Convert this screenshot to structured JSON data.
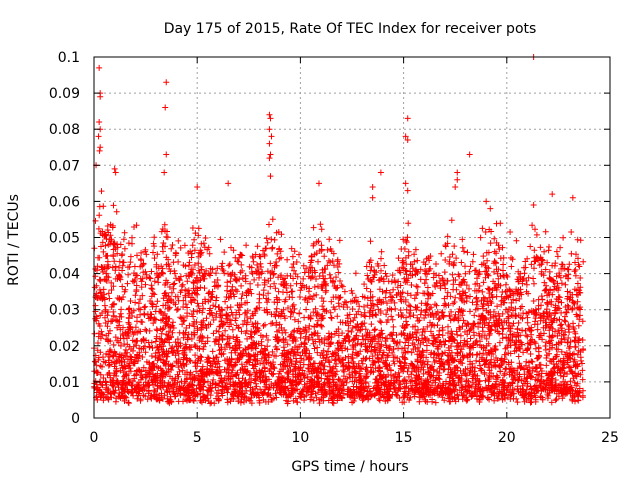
{
  "chart_data": {
    "type": "scatter",
    "title": "Day 175 of 2015, Rate Of TEC Index for receiver pots",
    "xlabel": "GPS time / hours",
    "ylabel": "ROTI / TECUs",
    "xlim": [
      0,
      25
    ],
    "ylim": [
      0,
      0.1
    ],
    "xticks": [
      0,
      5,
      10,
      15,
      20,
      25
    ],
    "yticks": [
      0,
      0.01,
      0.02,
      0.03,
      0.04,
      0.05,
      0.06,
      0.07,
      0.08,
      0.09,
      0.1
    ],
    "grid": true,
    "marker": "+",
    "color": "#ff0000",
    "data_range_x": [
      0,
      23.7
    ],
    "outliers": [
      {
        "x": 0.25,
        "y": 0.097
      },
      {
        "x": 0.3,
        "y": 0.09
      },
      {
        "x": 0.3,
        "y": 0.089
      },
      {
        "x": 0.25,
        "y": 0.082
      },
      {
        "x": 0.3,
        "y": 0.08
      },
      {
        "x": 0.22,
        "y": 0.078
      },
      {
        "x": 0.3,
        "y": 0.075
      },
      {
        "x": 0.27,
        "y": 0.074
      },
      {
        "x": 0.1,
        "y": 0.07
      },
      {
        "x": 1.0,
        "y": 0.069
      },
      {
        "x": 1.05,
        "y": 0.068
      },
      {
        "x": 3.5,
        "y": 0.093
      },
      {
        "x": 3.45,
        "y": 0.086
      },
      {
        "x": 3.5,
        "y": 0.073
      },
      {
        "x": 3.4,
        "y": 0.068
      },
      {
        "x": 8.5,
        "y": 0.084
      },
      {
        "x": 8.55,
        "y": 0.083
      },
      {
        "x": 8.5,
        "y": 0.08
      },
      {
        "x": 8.6,
        "y": 0.078
      },
      {
        "x": 8.5,
        "y": 0.076
      },
      {
        "x": 8.55,
        "y": 0.073
      },
      {
        "x": 8.5,
        "y": 0.072
      },
      {
        "x": 8.55,
        "y": 0.067
      },
      {
        "x": 10.9,
        "y": 0.065
      },
      {
        "x": 6.5,
        "y": 0.065
      },
      {
        "x": 5.0,
        "y": 0.064
      },
      {
        "x": 13.5,
        "y": 0.064
      },
      {
        "x": 13.5,
        "y": 0.061
      },
      {
        "x": 13.9,
        "y": 0.068
      },
      {
        "x": 15.2,
        "y": 0.083
      },
      {
        "x": 15.1,
        "y": 0.078
      },
      {
        "x": 15.2,
        "y": 0.077
      },
      {
        "x": 15.1,
        "y": 0.065
      },
      {
        "x": 15.2,
        "y": 0.063
      },
      {
        "x": 17.6,
        "y": 0.068
      },
      {
        "x": 17.6,
        "y": 0.066
      },
      {
        "x": 17.5,
        "y": 0.064
      },
      {
        "x": 18.2,
        "y": 0.073
      },
      {
        "x": 21.3,
        "y": 0.1
      },
      {
        "x": 21.3,
        "y": 0.059
      },
      {
        "x": 22.2,
        "y": 0.062
      },
      {
        "x": 23.2,
        "y": 0.061
      },
      {
        "x": 19.0,
        "y": 0.06
      },
      {
        "x": 19.2,
        "y": 0.058
      }
    ]
  }
}
